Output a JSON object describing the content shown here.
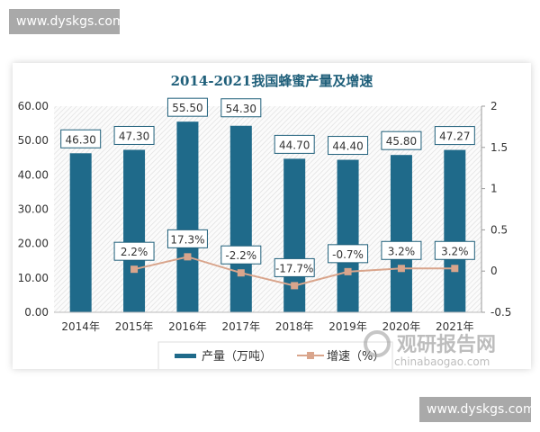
{
  "watermarks": {
    "top_left": "www.dyskgs.com",
    "bottom_right": "www.dyskgs.com",
    "logo_cn": "观研报告网",
    "logo_en": "chinabaogao.com"
  },
  "chart_data": {
    "type": "bar+line",
    "title": "2014-2021我国蜂蜜产量及增速",
    "categories": [
      "2014年",
      "2015年",
      "2016年",
      "2017年",
      "2018年",
      "2019年",
      "2020年",
      "2021年"
    ],
    "y_left": {
      "range": [
        0,
        60
      ],
      "ticks": [
        "0.00",
        "10.00",
        "20.00",
        "30.00",
        "40.00",
        "50.00",
        "60.00"
      ]
    },
    "y_right": {
      "range": [
        -0.5,
        2
      ],
      "ticks": [
        "-0.5",
        "0",
        "0.5",
        "1",
        "1.5",
        "2"
      ]
    },
    "series": [
      {
        "name": "产量（万吨）",
        "type": "bar",
        "axis": "left",
        "color": "#1f6a8a",
        "values": [
          46.3,
          47.3,
          55.5,
          54.3,
          44.7,
          44.4,
          45.8,
          47.27
        ],
        "labels": [
          "46.30",
          "47.30",
          "55.50",
          "54.30",
          "44.70",
          "44.40",
          "45.80",
          "47.27"
        ]
      },
      {
        "name": "增速（%）",
        "type": "line",
        "axis": "right",
        "color": "#d9a58c",
        "values": [
          null,
          0.022,
          0.173,
          -0.022,
          -0.177,
          -0.007,
          0.032,
          0.032
        ],
        "labels": [
          null,
          "2.2%",
          "17.3%",
          "-2.2%",
          "-17.7%",
          "-0.7%",
          "3.2%",
          "3.2%"
        ]
      }
    ],
    "legend": "bottom",
    "grid": false
  }
}
